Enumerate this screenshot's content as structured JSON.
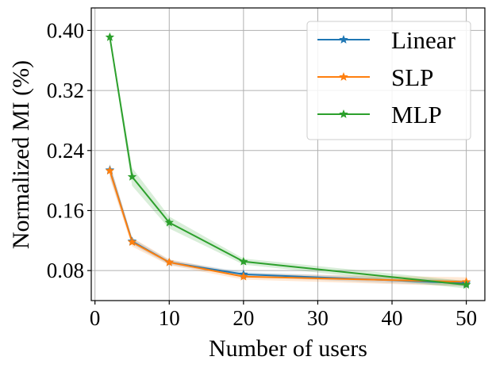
{
  "chart_data": {
    "type": "line",
    "title": "",
    "xlabel": "Number of users",
    "ylabel": "Normalized MI (%)",
    "xlim": [
      -0.5,
      52.5
    ],
    "ylim": [
      0.04,
      0.43
    ],
    "xticks": [
      0,
      10,
      20,
      30,
      40,
      50
    ],
    "xtick_labels": [
      "0",
      "10",
      "20",
      "30",
      "40",
      "50"
    ],
    "yticks": [
      0.08,
      0.16,
      0.24,
      0.32,
      0.4
    ],
    "ytick_labels": [
      "0.08",
      "0.16",
      "0.24",
      "0.32",
      "0.40"
    ],
    "grid": true,
    "legend_position": "top-right",
    "x": [
      2,
      5,
      10,
      20,
      50
    ],
    "series": [
      {
        "name": "Linear",
        "color": "#1f77b4",
        "marker": "star",
        "values": [
          0.214,
          0.119,
          0.091,
          0.075,
          0.063
        ],
        "band": [
          0.008,
          0.004,
          0.003,
          0.003,
          0.004
        ]
      },
      {
        "name": "SLP",
        "color": "#ff7f0e",
        "marker": "star",
        "values": [
          0.213,
          0.118,
          0.091,
          0.072,
          0.065
        ],
        "band": [
          0.01,
          0.006,
          0.004,
          0.004,
          0.006
        ]
      },
      {
        "name": "MLP",
        "color": "#2ca02c",
        "marker": "star",
        "values": [
          0.391,
          0.205,
          0.144,
          0.092,
          0.061
        ],
        "band": [
          0.004,
          0.012,
          0.008,
          0.004,
          0.005
        ]
      }
    ]
  }
}
